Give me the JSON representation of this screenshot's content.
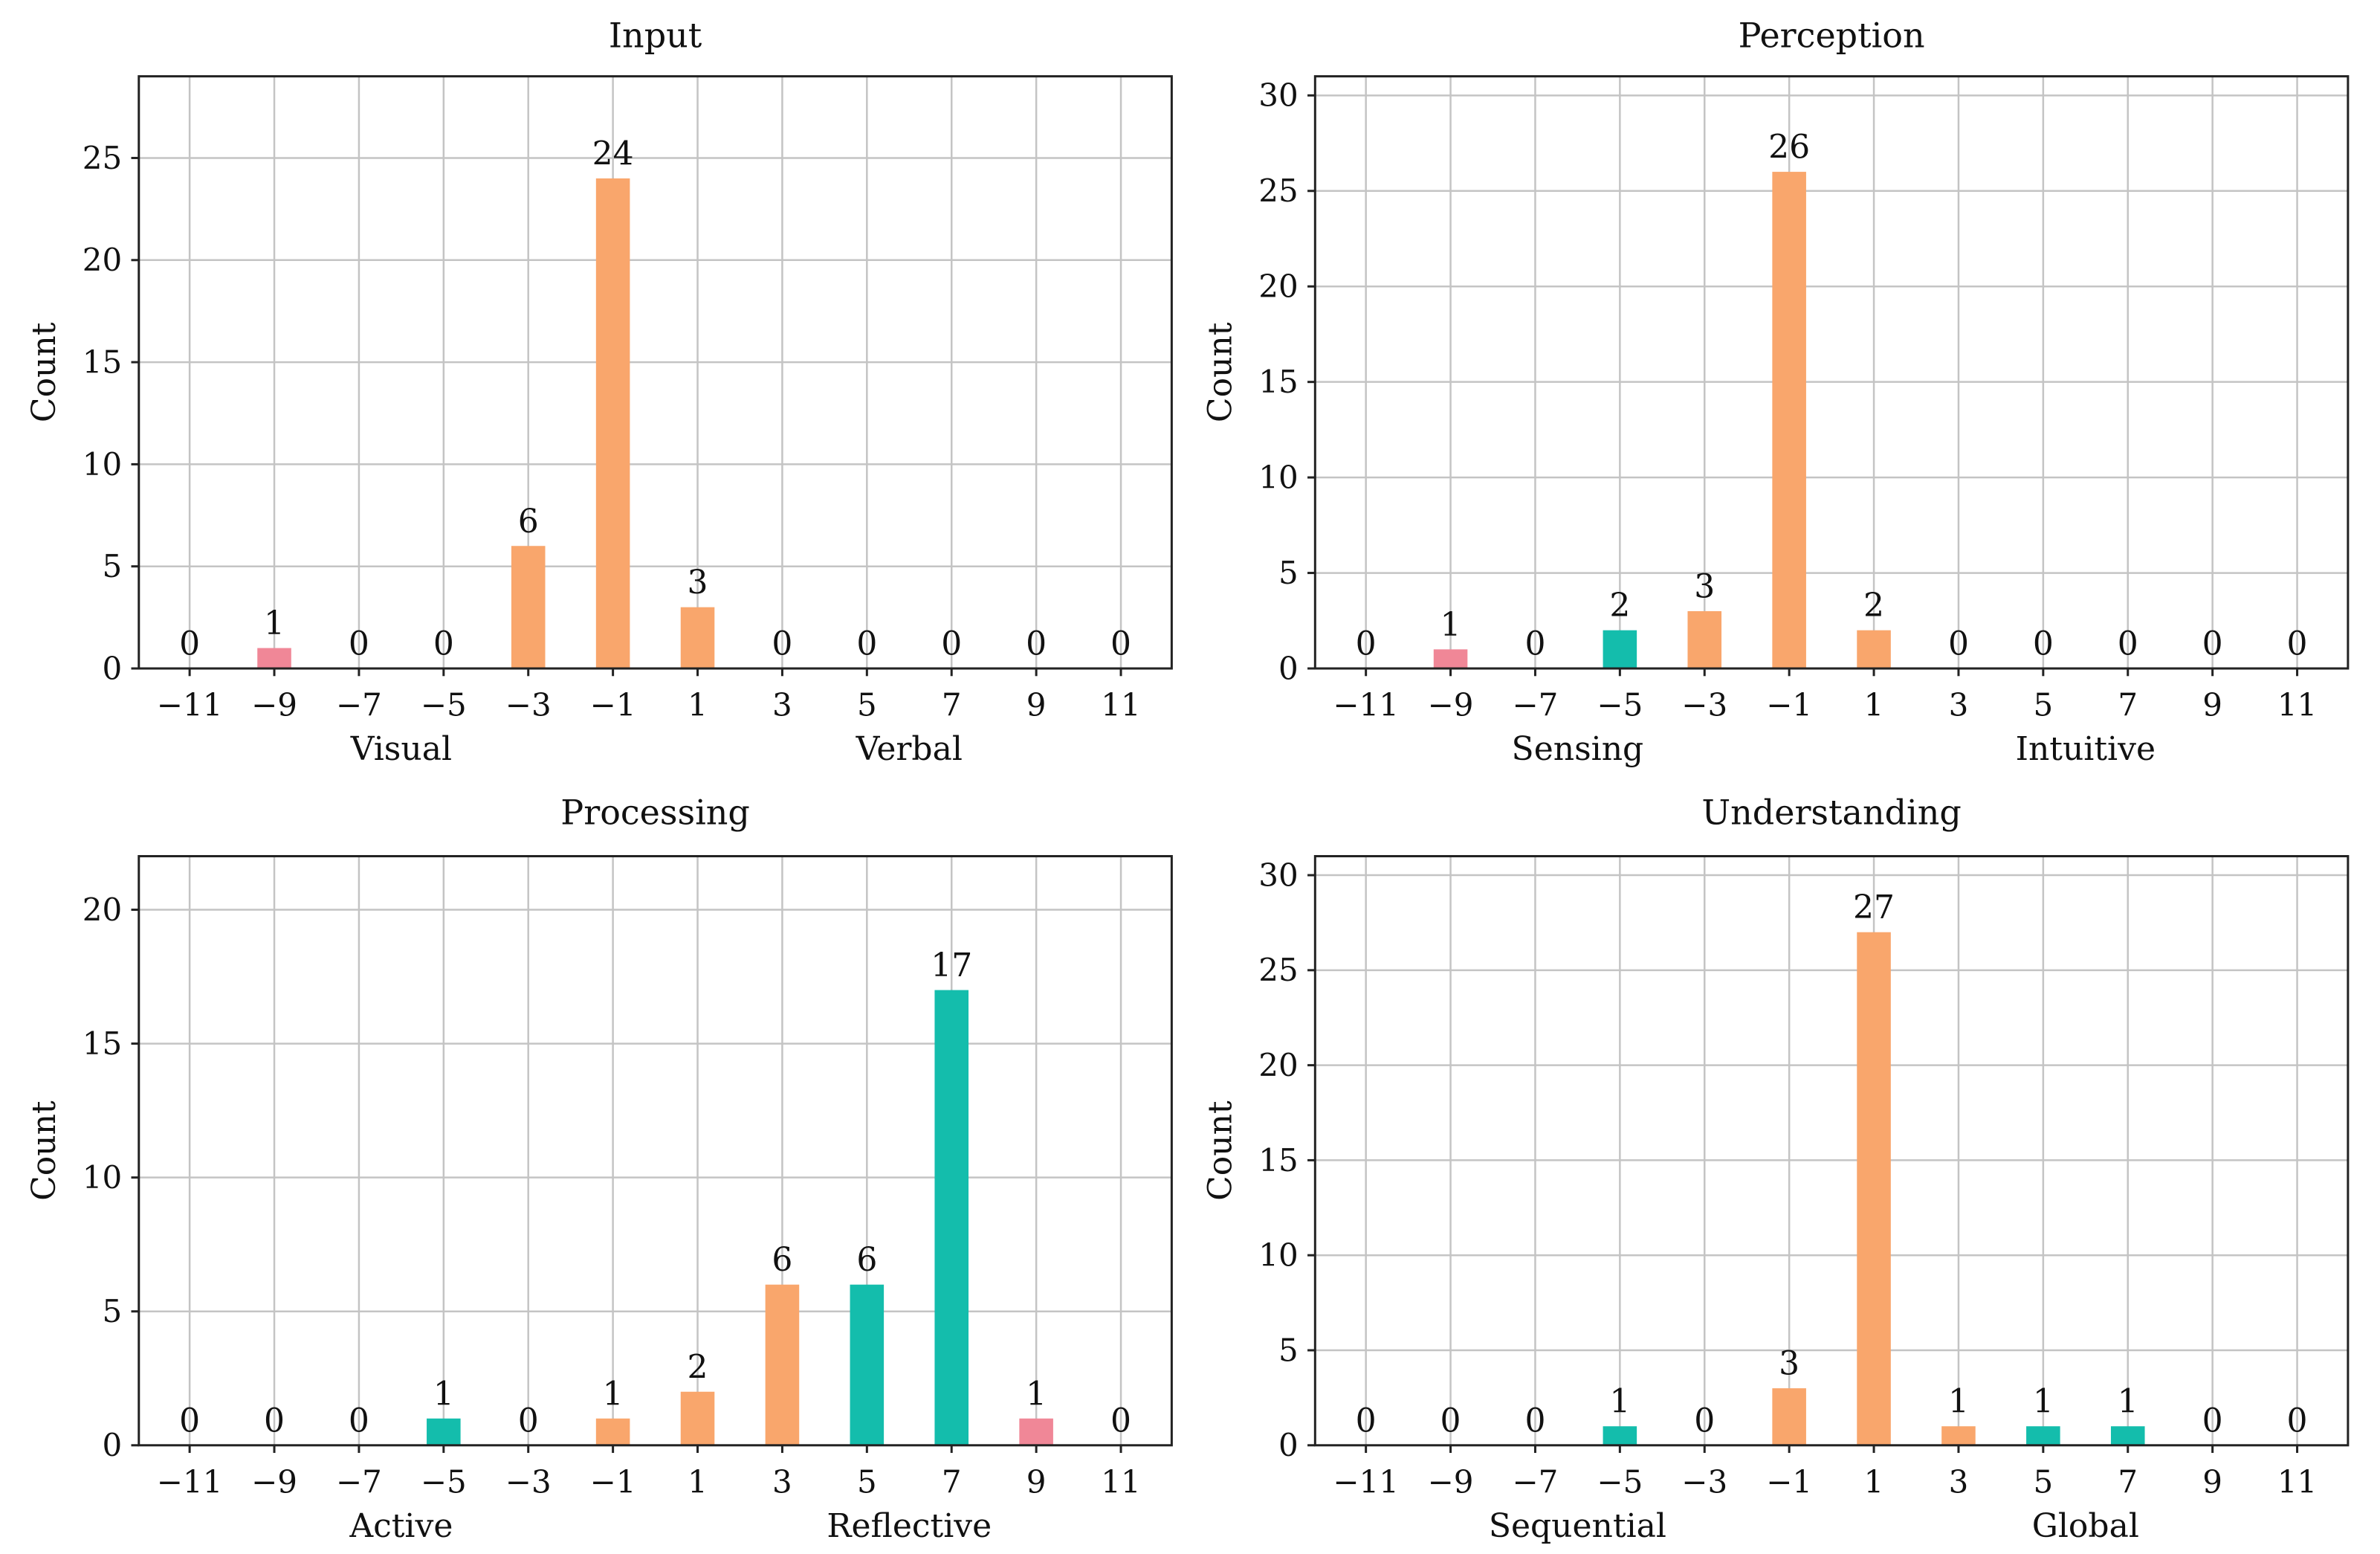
{
  "colors": {
    "pink": "#F08797",
    "orange": "#F9A66C",
    "teal": "#14BDAC"
  },
  "chart_data": [
    {
      "type": "bar",
      "title": "Input",
      "ylabel": "Count",
      "categories": [
        "−11",
        "−9",
        "−7",
        "−5",
        "−3",
        "−1",
        "1",
        "3",
        "5",
        "7",
        "9",
        "11"
      ],
      "x": [
        -11,
        -9,
        -7,
        -5,
        -3,
        -1,
        1,
        3,
        5,
        7,
        9,
        11
      ],
      "values": [
        0,
        1,
        0,
        0,
        6,
        24,
        3,
        0,
        0,
        0,
        0,
        0
      ],
      "bar_colors": [
        "orange",
        "pink",
        "orange",
        "orange",
        "orange",
        "orange",
        "orange",
        "orange",
        "orange",
        "orange",
        "orange",
        "orange"
      ],
      "ylim": [
        0,
        29
      ],
      "yticks": [
        0,
        5,
        10,
        15,
        20,
        25
      ],
      "side_labels": [
        "Visual",
        "Verbal"
      ],
      "grid": true
    },
    {
      "type": "bar",
      "title": "Perception",
      "ylabel": "Count",
      "categories": [
        "−11",
        "−9",
        "−7",
        "−5",
        "−3",
        "−1",
        "1",
        "3",
        "5",
        "7",
        "9",
        "11"
      ],
      "x": [
        -11,
        -9,
        -7,
        -5,
        -3,
        -1,
        1,
        3,
        5,
        7,
        9,
        11
      ],
      "values": [
        0,
        1,
        0,
        2,
        3,
        26,
        2,
        0,
        0,
        0,
        0,
        0
      ],
      "bar_colors": [
        "orange",
        "pink",
        "orange",
        "teal",
        "orange",
        "orange",
        "orange",
        "orange",
        "orange",
        "orange",
        "orange",
        "orange"
      ],
      "ylim": [
        0,
        31
      ],
      "yticks": [
        0,
        5,
        10,
        15,
        20,
        25,
        30
      ],
      "side_labels": [
        "Sensing",
        "Intuitive"
      ],
      "grid": true
    },
    {
      "type": "bar",
      "title": "Processing",
      "ylabel": "Count",
      "categories": [
        "−11",
        "−9",
        "−7",
        "−5",
        "−3",
        "−1",
        "1",
        "3",
        "5",
        "7",
        "9",
        "11"
      ],
      "x": [
        -11,
        -9,
        -7,
        -5,
        -3,
        -1,
        1,
        3,
        5,
        7,
        9,
        11
      ],
      "values": [
        0,
        0,
        0,
        1,
        0,
        1,
        2,
        6,
        6,
        17,
        1,
        0
      ],
      "bar_colors": [
        "orange",
        "orange",
        "orange",
        "teal",
        "orange",
        "orange",
        "orange",
        "orange",
        "teal",
        "teal",
        "pink",
        "orange"
      ],
      "ylim": [
        0,
        22
      ],
      "yticks": [
        0,
        5,
        10,
        15,
        20
      ],
      "side_labels": [
        "Active",
        "Reflective"
      ],
      "grid": true
    },
    {
      "type": "bar",
      "title": "Understanding",
      "ylabel": "Count",
      "categories": [
        "−11",
        "−9",
        "−7",
        "−5",
        "−3",
        "−1",
        "1",
        "3",
        "5",
        "7",
        "9",
        "11"
      ],
      "x": [
        -11,
        -9,
        -7,
        -5,
        -3,
        -1,
        1,
        3,
        5,
        7,
        9,
        11
      ],
      "values": [
        0,
        0,
        0,
        1,
        0,
        3,
        27,
        1,
        1,
        1,
        0,
        0
      ],
      "bar_colors": [
        "orange",
        "orange",
        "orange",
        "teal",
        "orange",
        "orange",
        "orange",
        "orange",
        "teal",
        "teal",
        "orange",
        "orange"
      ],
      "ylim": [
        0,
        31
      ],
      "yticks": [
        0,
        5,
        10,
        15,
        20,
        25,
        30
      ],
      "side_labels": [
        "Sequential",
        "Global"
      ],
      "grid": true
    }
  ]
}
